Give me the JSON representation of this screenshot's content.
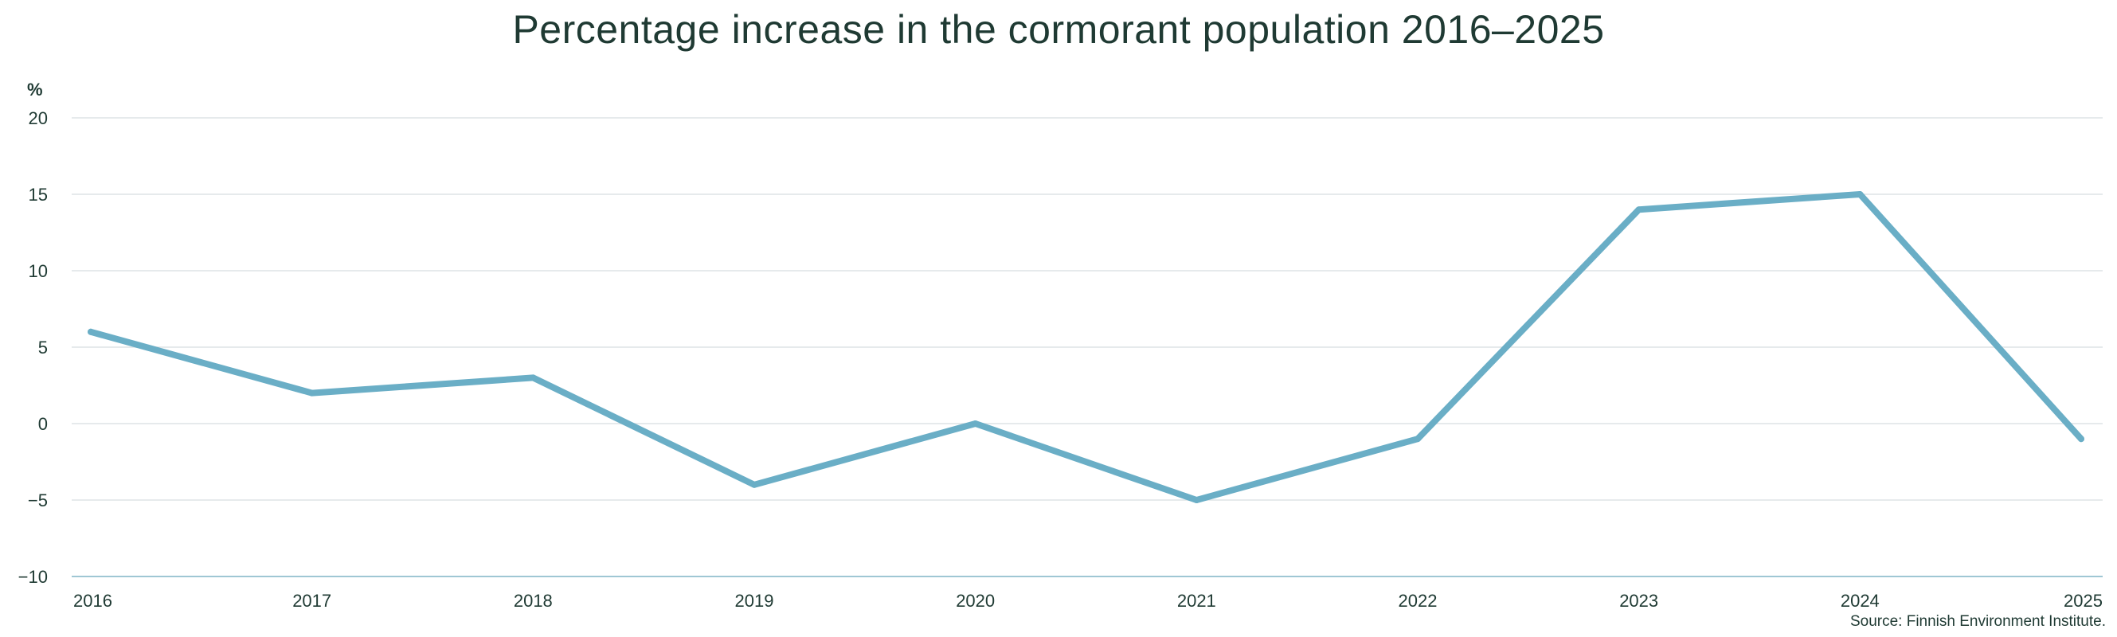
{
  "chart_data": {
    "type": "line",
    "title": "Percentage increase in the cormorant population 2016–2025",
    "ylabel": "%",
    "xlabel": "",
    "source": "Source: Finnish Environment Institute.",
    "categories": [
      "2016",
      "2017",
      "2018",
      "2019",
      "2020",
      "2021",
      "2022",
      "2023",
      "2024",
      "2025"
    ],
    "series": [
      {
        "values": [
          6,
          2,
          3,
          -4,
          0,
          -5,
          -1,
          14,
          15,
          -1
        ],
        "color": "#6aaec6"
      }
    ],
    "ylim": [
      -10,
      20
    ],
    "yticks": [
      20,
      15,
      10,
      5,
      0,
      -5,
      -10
    ],
    "ytick_labels": [
      "20",
      "15",
      "10",
      "5",
      "0",
      "−5",
      "−10"
    ],
    "grid": true,
    "legend": "none",
    "colors": {
      "text": "#1f3a33",
      "grid": "#dde3e6",
      "axis": "#9fc7d4"
    }
  }
}
